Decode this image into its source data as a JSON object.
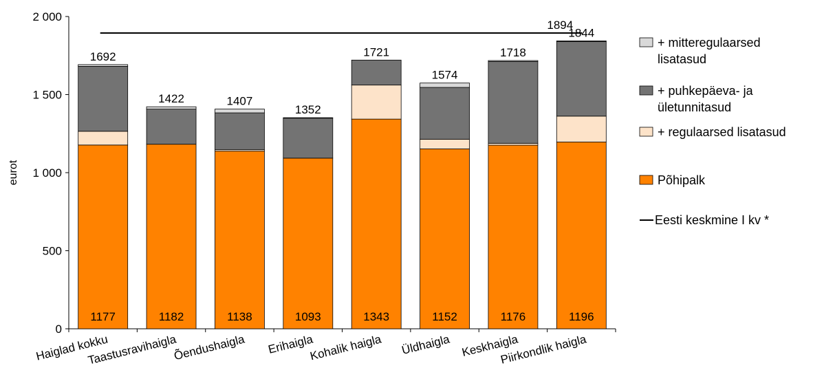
{
  "chart_data": {
    "type": "bar",
    "stacked": true,
    "title": "",
    "ylabel": "eurot",
    "xlabel": "",
    "ylim": [
      0,
      2000
    ],
    "yticks": [
      0,
      500,
      1000,
      1500,
      2000
    ],
    "ytick_labels": [
      "0",
      "500",
      "1 000",
      "1 500",
      "2 000"
    ],
    "grid": false,
    "legend_position": "right",
    "categories": [
      "Haiglad kokku",
      "Taastusravihaigla",
      "Õendushaigla",
      "Erihaigla",
      "Kohalik haigla",
      "Üldhaigla",
      "Keskhaigla",
      "Piirkondlik haigla"
    ],
    "series": [
      {
        "name": "Põhipalk",
        "color": "#ff8200",
        "values": [
          1177,
          1182,
          1138,
          1093,
          1343,
          1152,
          1176,
          1196
        ]
      },
      {
        "name": "+ regulaarsed lisatasud",
        "color": "#fde3c9",
        "values": [
          88,
          0,
          9,
          0,
          218,
          62,
          12,
          166
        ]
      },
      {
        "name": "+ puhkepäeva- ja ületunnitasud",
        "color": "#737373",
        "values": [
          416,
          225,
          236,
          256,
          160,
          332,
          524,
          478
        ]
      },
      {
        "name": "+ mitteregulaarsed lisatasud",
        "color": "#d9d9d9",
        "values": [
          11,
          15,
          24,
          3,
          0,
          28,
          6,
          4
        ]
      }
    ],
    "base_labels": [
      "1177",
      "1182",
      "1138",
      "1093",
      "1343",
      "1152",
      "1176",
      "1196"
    ],
    "total_labels": [
      "1692",
      "1422",
      "1407",
      "1352",
      "1721",
      "1574",
      "1718",
      "1844"
    ],
    "reference_line": {
      "name": "Eesti keskmine I kv *",
      "value": 1894,
      "label": "1894",
      "color": "#000000"
    }
  }
}
